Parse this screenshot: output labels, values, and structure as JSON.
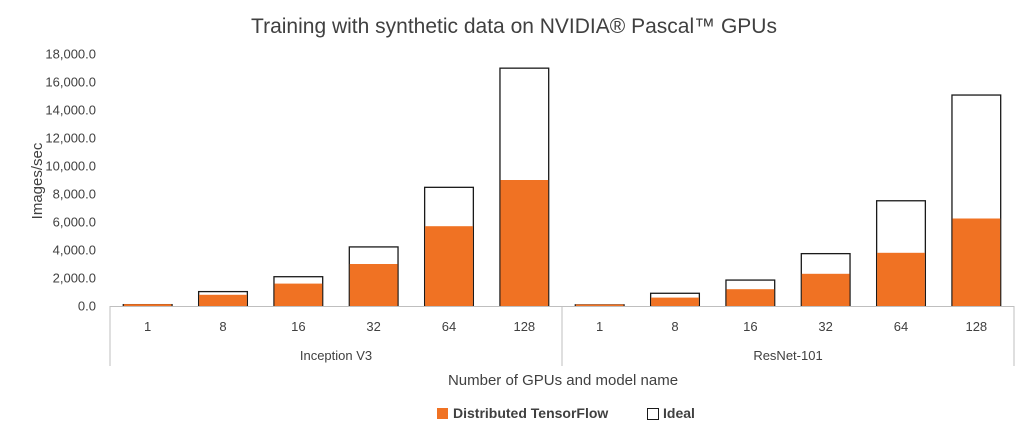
{
  "chart_data": {
    "type": "bar",
    "title": "Training with synthetic data on NVIDIA® Pascal™ GPUs",
    "xlabel": "Number of GPUs and model name",
    "ylabel": "Images/sec",
    "ylim": [
      0,
      18000
    ],
    "yticks": [
      "0.0",
      "2,000.0",
      "4,000.0",
      "6,000.0",
      "8,000.0",
      "10,000.0",
      "12,000.0",
      "14,000.0",
      "16,000.0",
      "18,000.0"
    ],
    "ytick_values": [
      0,
      2000,
      4000,
      6000,
      8000,
      10000,
      12000,
      14000,
      16000,
      18000
    ],
    "groups": [
      {
        "name": "Inception V3",
        "categories": [
          "1",
          "8",
          "16",
          "32",
          "64",
          "128"
        ]
      },
      {
        "name": "ResNet-101",
        "categories": [
          "1",
          "8",
          "16",
          "32",
          "64",
          "128"
        ]
      }
    ],
    "series": [
      {
        "name": "Distributed TensorFlow",
        "color": "#f07223",
        "values": [
          133,
          800,
          1600,
          3000,
          5700,
          9000,
          110,
          600,
          1200,
          2300,
          3800,
          6250
        ]
      },
      {
        "name": "Ideal",
        "color": "#ffffff",
        "stroke": "#1a1a1a",
        "values": [
          133,
          1064,
          2128,
          4256,
          8512,
          17024,
          118,
          944,
          1888,
          3776,
          7552,
          15104
        ]
      }
    ],
    "legend_position": "bottom",
    "grid": false
  }
}
